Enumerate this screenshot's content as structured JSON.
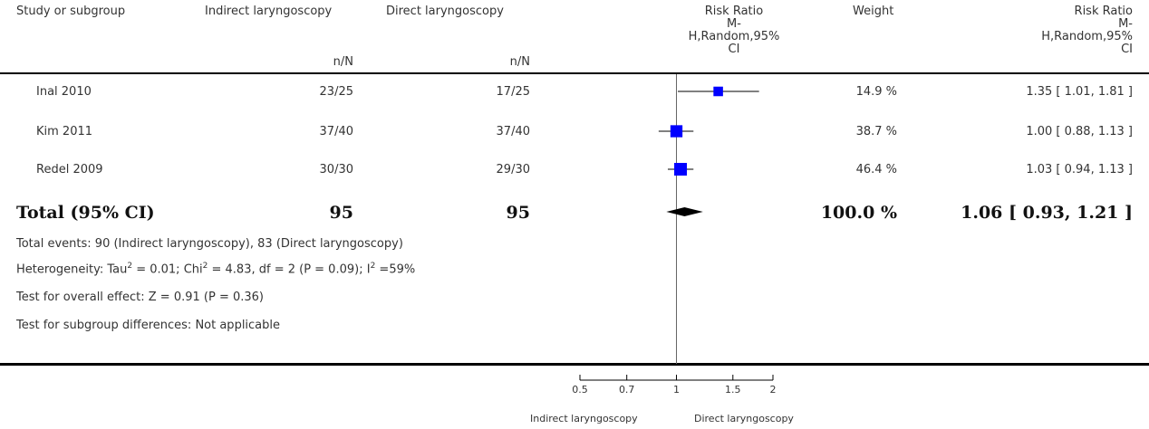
{
  "header": {
    "col_study": "Study or subgroup",
    "col_exp": "Indirect laryngoscopy",
    "col_ctrl": "Direct laryngoscopy",
    "col_rr_line1": "Risk Ratio",
    "col_rr_line2": "M-",
    "col_rr_line3": "H,Random,95%",
    "col_rr_line4": "CI",
    "col_weight": "Weight",
    "col_rr2_line1": "Risk Ratio",
    "col_rr2_line2": "M-",
    "col_rr2_line3": "H,Random,95%",
    "col_rr2_line4": "CI",
    "col_exp_sub": "n/N",
    "col_ctrl_sub": "n/N"
  },
  "rows": [
    {
      "study": "Inal 2010",
      "exp": "23/25",
      "ctrl": "17/25",
      "weight": "14.9 %",
      "ci_text": "1.35 [ 1.01, 1.81 ]"
    },
    {
      "study": "Kim 2011",
      "exp": "37/40",
      "ctrl": "37/40",
      "weight": "38.7 %",
      "ci_text": "1.00 [ 0.88, 1.13 ]"
    },
    {
      "study": "Redel 2009",
      "exp": "30/30",
      "ctrl": "29/30",
      "weight": "46.4 %",
      "ci_text": "1.03 [ 0.94, 1.13 ]"
    }
  ],
  "total": {
    "label": "Total (95% CI)",
    "exp": "95",
    "ctrl": "95",
    "weight": "100.0 %",
    "ci_text": "1.06 [ 0.93, 1.21 ]"
  },
  "footer": {
    "events": "Total events: 90 (Indirect laryngoscopy), 83 (Direct laryngoscopy)",
    "het_a": "Heterogeneity: Tau",
    "het_b": " = 0.01; Chi",
    "het_c": " = 4.83, df = 2 (P = 0.09); I",
    "het_d": " =59%",
    "sup": "2",
    "overall": "Test for overall effect: Z = 0.91 (P = 0.36)",
    "subgroup": "Test for subgroup differences: Not applicable"
  },
  "axis": {
    "left_label": "Indirect laryngoscopy",
    "right_label": "Direct laryngoscopy"
  },
  "colors": {
    "marker": "#0000ff",
    "line": "#000000"
  },
  "chart_data": {
    "type": "scatter",
    "scale": "log",
    "xlim": [
      0.5,
      2
    ],
    "ticks": [
      0.5,
      0.7,
      1,
      1.5,
      2
    ],
    "tick_labels": [
      "0.5",
      "0.7",
      "1",
      "1.5",
      "2"
    ],
    "reference_line": 1,
    "studies": [
      {
        "name": "Inal 2010",
        "rr": 1.35,
        "lo": 1.01,
        "hi": 1.81,
        "weight": 14.9
      },
      {
        "name": "Kim 2011",
        "rr": 1.0,
        "lo": 0.88,
        "hi": 1.13,
        "weight": 38.7
      },
      {
        "name": "Redel 2009",
        "rr": 1.03,
        "lo": 0.94,
        "hi": 1.13,
        "weight": 46.4
      }
    ],
    "pooled": {
      "rr": 1.06,
      "lo": 0.93,
      "hi": 1.21
    }
  }
}
